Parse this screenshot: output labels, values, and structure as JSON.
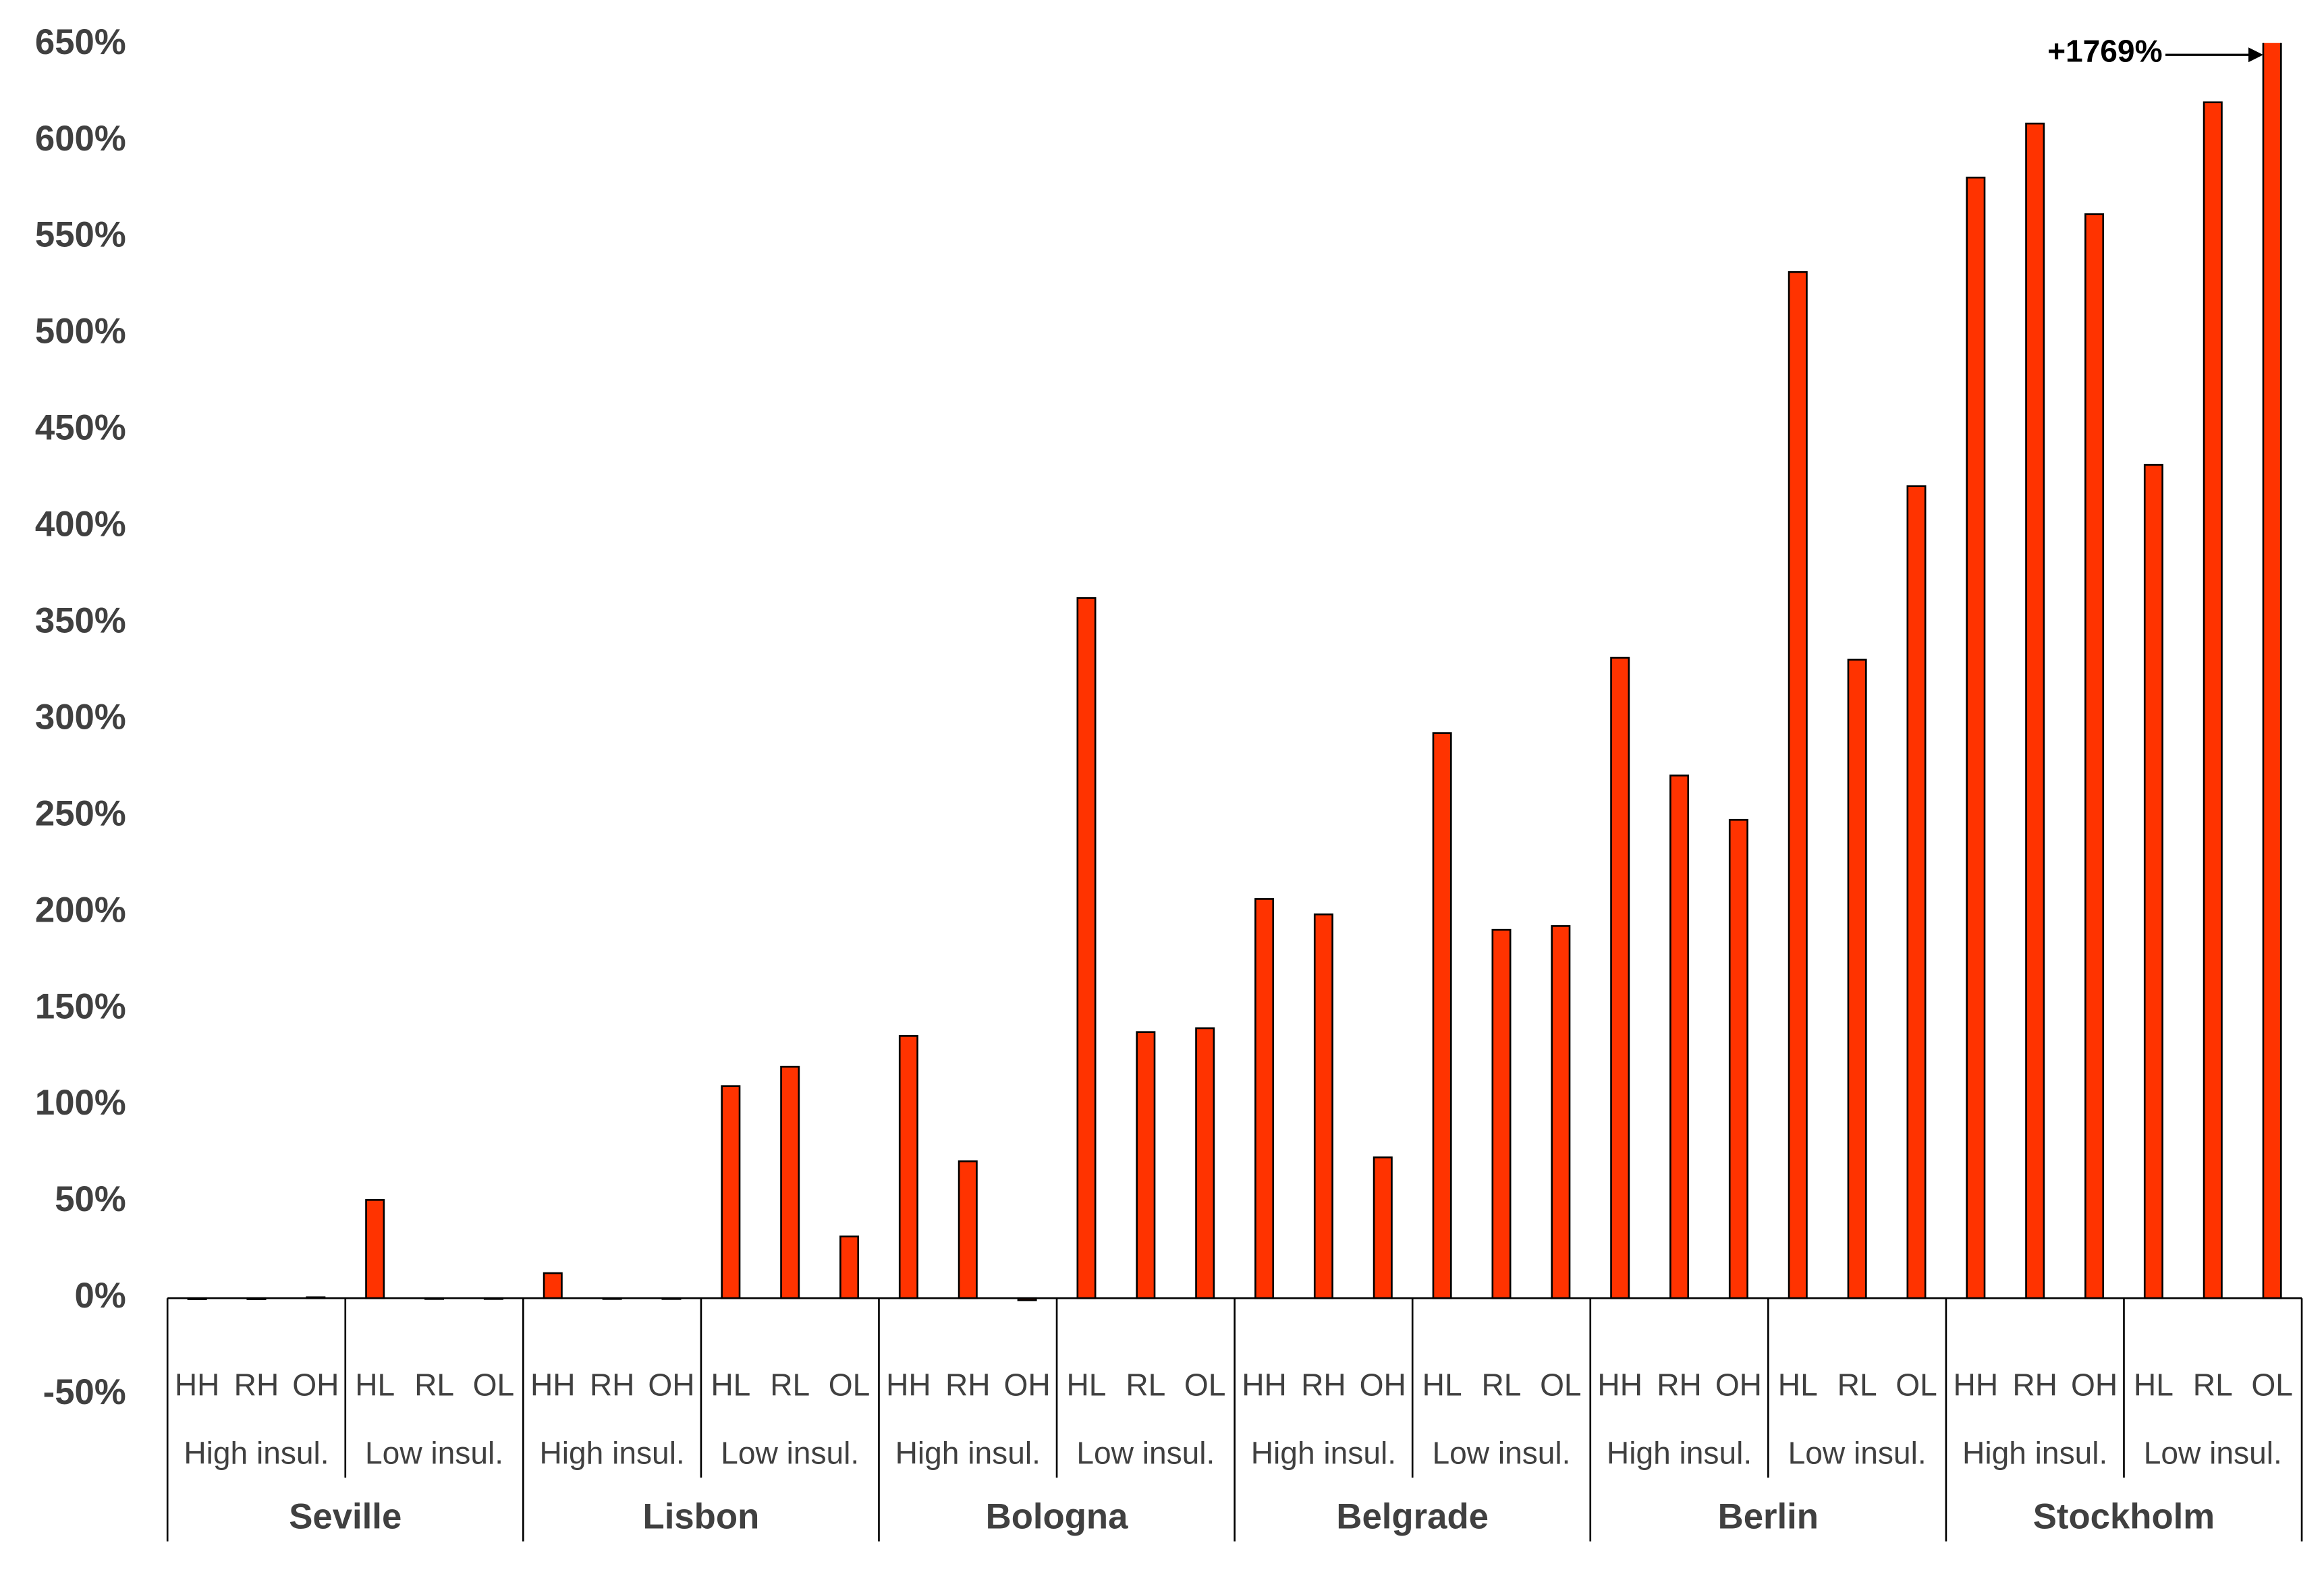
{
  "chart_data": {
    "type": "bar",
    "groups": [
      "Seville",
      "Lisbon",
      "Bologna",
      "Belgrade",
      "Berlin",
      "Stockholm"
    ],
    "subgroups": [
      "High insul.",
      "Low insul.",
      "High insul.",
      "Low insul.",
      "High insul.",
      "Low insul.",
      "High insul.",
      "Low insul.",
      "High insul.",
      "Low insul.",
      "High insul.",
      "Low insul."
    ],
    "categories": [
      "HH",
      "RH",
      "OH",
      "HL",
      "RL",
      "OL",
      "HH",
      "RH",
      "OH",
      "HL",
      "RL",
      "OL",
      "HH",
      "RH",
      "OH",
      "HL",
      "RL",
      "OL",
      "HH",
      "RH",
      "OH",
      "HL",
      "RL",
      "OL",
      "HH",
      "RH",
      "OH",
      "HL",
      "RL",
      "OL",
      "HH",
      "RH",
      "OH",
      "HL",
      "RL",
      "OL"
    ],
    "values": [
      -0.5,
      -0.5,
      0.5,
      51,
      0,
      0,
      13,
      0,
      0,
      110,
      120,
      32,
      136,
      71,
      -1,
      363,
      138,
      140,
      207,
      199,
      73,
      293,
      191,
      193,
      332,
      271,
      248,
      532,
      331,
      421,
      581,
      609,
      562,
      432,
      620,
      1769
    ],
    "value_labels": [
      null,
      null,
      null,
      null,
      null,
      null,
      null,
      null,
      null,
      null,
      null,
      null,
      null,
      null,
      null,
      null,
      null,
      null,
      null,
      null,
      null,
      null,
      null,
      null,
      null,
      null,
      null,
      null,
      null,
      null,
      null,
      null,
      null,
      null,
      null,
      "+1769%"
    ],
    "color": "#ff3300",
    "ylim": [
      -50,
      650
    ],
    "yticks": [
      {
        "value": -50,
        "label": "-50%"
      },
      {
        "value": 0,
        "label": "0%"
      },
      {
        "value": 50,
        "label": "50%"
      },
      {
        "value": 100,
        "label": "100%"
      },
      {
        "value": 150,
        "label": "150%"
      },
      {
        "value": 200,
        "label": "200%"
      },
      {
        "value": 250,
        "label": "250%"
      },
      {
        "value": 300,
        "label": "300%"
      },
      {
        "value": 350,
        "label": "350%"
      },
      {
        "value": 400,
        "label": "400%"
      },
      {
        "value": 450,
        "label": "450%"
      },
      {
        "value": 500,
        "label": "500%"
      },
      {
        "value": 550,
        "label": "550%"
      },
      {
        "value": 600,
        "label": "600%"
      },
      {
        "value": 650,
        "label": "650%"
      }
    ],
    "grid": false
  }
}
